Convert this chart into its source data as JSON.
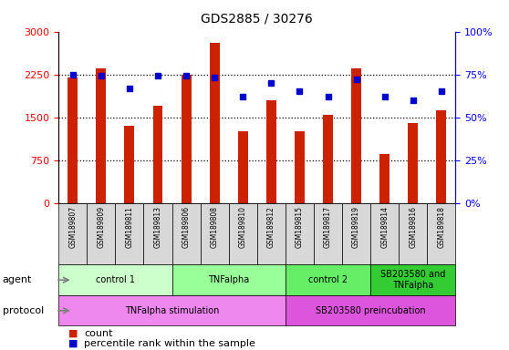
{
  "title": "GDS2885 / 30276",
  "samples": [
    "GSM189807",
    "GSM189809",
    "GSM189811",
    "GSM189813",
    "GSM189806",
    "GSM189808",
    "GSM189810",
    "GSM189812",
    "GSM189815",
    "GSM189817",
    "GSM189819",
    "GSM189814",
    "GSM189816",
    "GSM189818"
  ],
  "counts": [
    2200,
    2350,
    1350,
    1700,
    2250,
    2800,
    1250,
    1800,
    1250,
    1550,
    2350,
    850,
    1400,
    1620
  ],
  "percentiles": [
    75,
    74,
    67,
    74,
    74,
    73,
    62,
    70,
    65,
    62,
    72,
    62,
    60,
    65
  ],
  "ylim_left": [
    0,
    3000
  ],
  "ylim_right": [
    0,
    100
  ],
  "yticks_left": [
    0,
    750,
    1500,
    2250,
    3000
  ],
  "yticks_right": [
    0,
    25,
    50,
    75,
    100
  ],
  "bar_color": "#cc2200",
  "dot_color": "#0000cc",
  "agent_groups": [
    {
      "label": "control 1",
      "start": 0,
      "end": 4,
      "color": "#ccffcc"
    },
    {
      "label": "TNFalpha",
      "start": 4,
      "end": 8,
      "color": "#99ff99"
    },
    {
      "label": "control 2",
      "start": 8,
      "end": 11,
      "color": "#66ee66"
    },
    {
      "label": "SB203580 and\nTNFalpha",
      "start": 11,
      "end": 14,
      "color": "#33cc33"
    }
  ],
  "protocol_groups": [
    {
      "label": "TNFalpha stimulation",
      "start": 0,
      "end": 8,
      "color": "#ee88ee"
    },
    {
      "label": "SB203580 preincubation",
      "start": 8,
      "end": 14,
      "color": "#dd55dd"
    }
  ],
  "legend_count_label": "count",
  "legend_pct_label": "percentile rank within the sample",
  "agent_label": "agent",
  "protocol_label": "protocol"
}
